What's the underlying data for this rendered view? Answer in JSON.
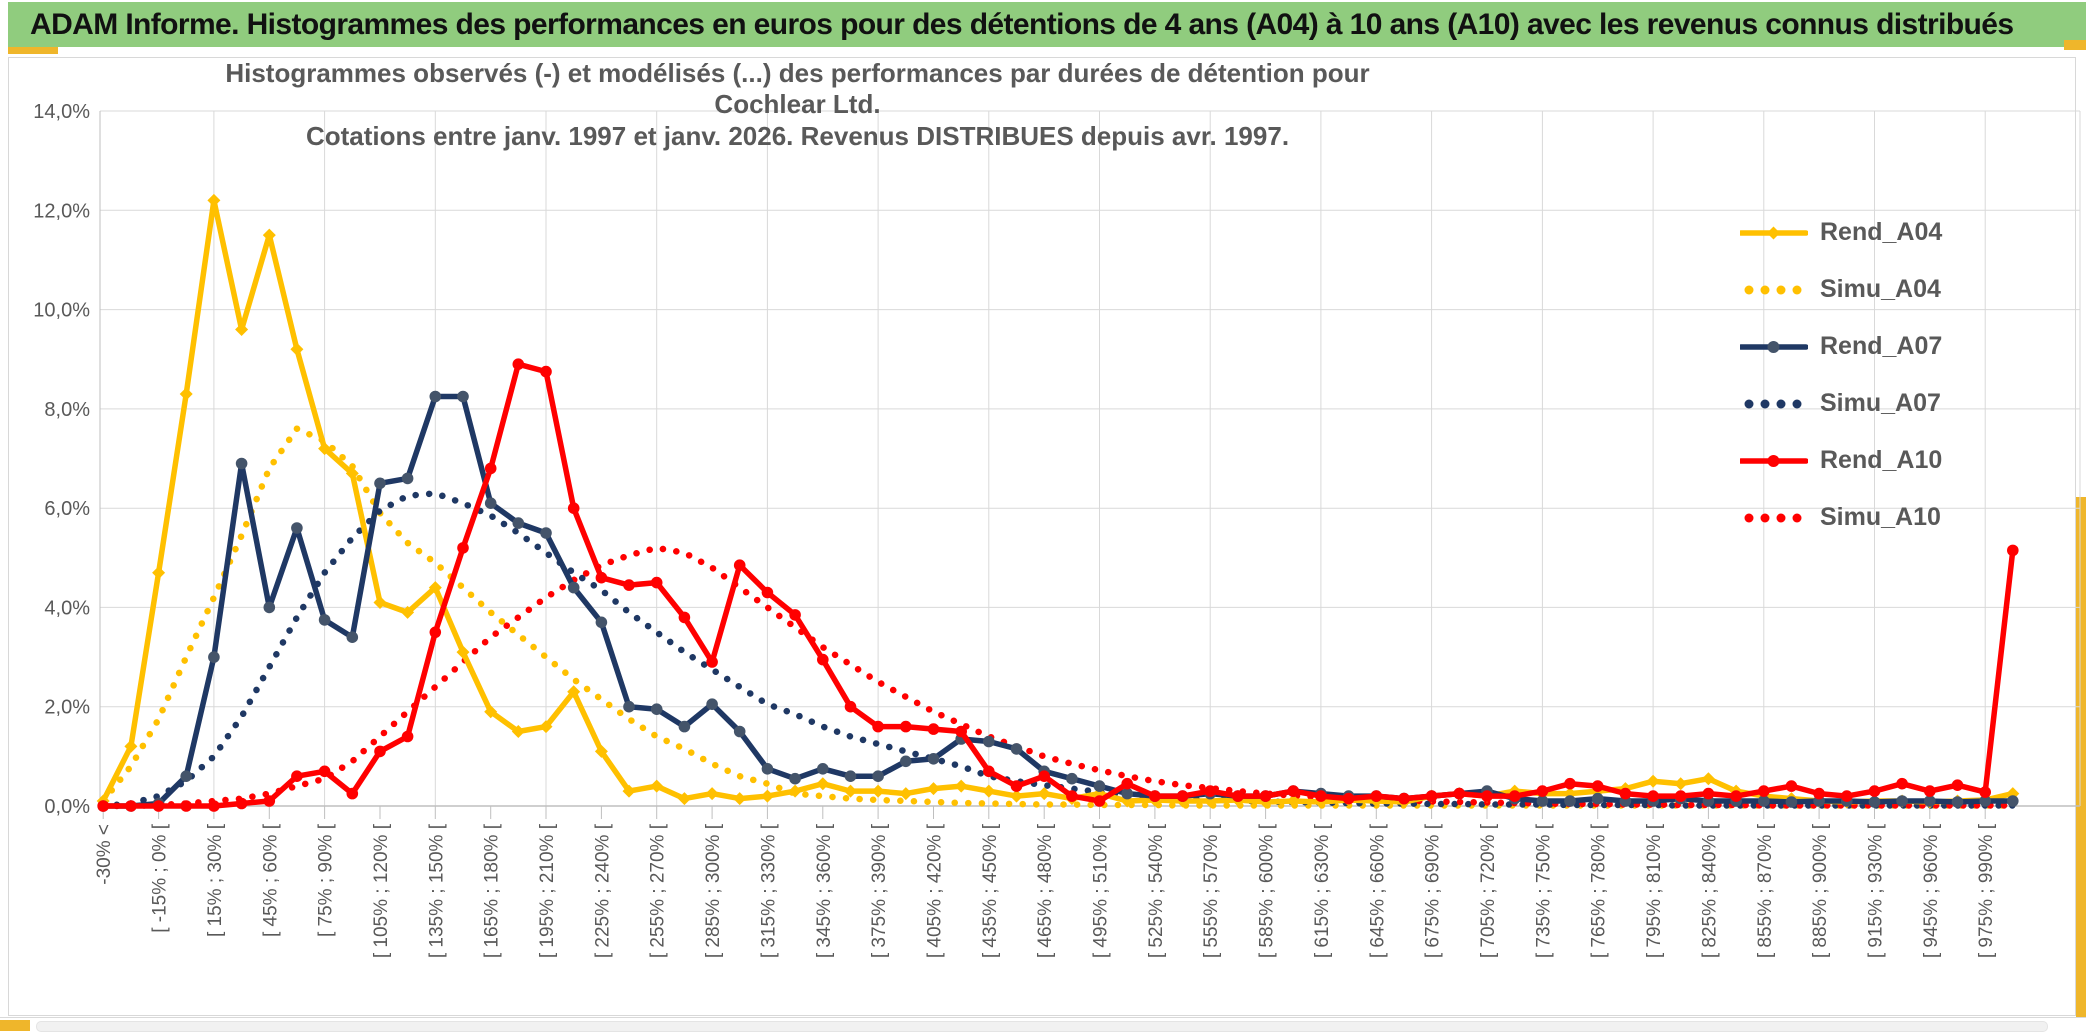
{
  "header": {
    "title": "ADAM Informe. Histogrammes des performances en euros pour des détentions de 4 ans (A04) à 10 ans (A10) avec les revenus connus distribués",
    "bar_color": "#90CC7E",
    "accent_color": "#EFB62B"
  },
  "chart_data": {
    "type": "line",
    "title_line1": "Histogrammes observés (-) et modélisés (...) des performances par durées de détention pour Cochlear Ltd.",
    "title_line2": "Cotations entre janv. 1997 et janv. 2026. Revenus DISTRIBUES depuis avr. 1997.",
    "ylim": [
      0,
      14
    ],
    "grid": true,
    "legend_position": "right",
    "y_tick_labels": [
      "0,0%",
      "2,0%",
      "4,0%",
      "6,0%",
      "8,0%",
      "10,0%",
      "12,0%",
      "14,0%"
    ],
    "x_bins_per_tick_label": 2,
    "x_tick_labels": [
      "-30% <",
      "[ -15% ; 0% [",
      "[ 15% ; 30% [",
      "[ 45% ; 60% [",
      "[ 75% ; 90% [",
      "[ 105% ; 120% [",
      "[ 135% ; 150% [",
      "[ 165% ; 180% [",
      "[ 195% ; 210% [",
      "[ 225% ; 240% [",
      "[ 255% ; 270% [",
      "[ 285% ; 300% [",
      "[ 315% ; 330% [",
      "[ 345% ; 360% [",
      "[ 375% ; 390% [",
      "[ 405% ; 420% [",
      "[ 435% ; 450% [",
      "[ 465% ; 480% [",
      "[ 495% ; 510% [",
      "[ 525% ; 540% [",
      "[ 555% ; 570% [",
      "[ 585% ; 600% [",
      "[ 615% ; 630% [",
      "[ 645% ; 660% [",
      "[ 675% ; 690% [",
      "[ 705% ; 720% [",
      "[ 735% ; 750% [",
      "[ 765% ; 780% [",
      "[ 795% ; 810% [",
      "[ 825% ; 840% [",
      "[ 855% ; 870% [",
      "[ 885% ; 900% [",
      "[ 915% ; 930% [",
      "[ 945% ; 960% [",
      "[ 975% ; 990% ["
    ],
    "series": [
      {
        "name": "Rend_A04",
        "style": "solid",
        "color": "#FFC000",
        "marker": "diamond",
        "marker_color": "#FFC000",
        "values": [
          0.1,
          1.2,
          4.7,
          8.3,
          12.2,
          9.6,
          11.5,
          9.2,
          7.2,
          6.7,
          4.1,
          3.9,
          4.4,
          3.1,
          1.9,
          1.5,
          1.6,
          2.3,
          1.1,
          0.3,
          0.4,
          0.15,
          0.25,
          0.15,
          0.2,
          0.3,
          0.45,
          0.3,
          0.3,
          0.25,
          0.35,
          0.4,
          0.3,
          0.2,
          0.25,
          0.15,
          0.25,
          0.1,
          0.12,
          0.1,
          0.1,
          0.12,
          0.08,
          0.1,
          0.08,
          0.12,
          0.1,
          0.08,
          0.2,
          0.25,
          0.2,
          0.3,
          0.25,
          0.25,
          0.3,
          0.35,
          0.5,
          0.45,
          0.55,
          0.3,
          0.2,
          0.15,
          0.1,
          0.08,
          0.1,
          0.1,
          0.08,
          0.1,
          0.12,
          0.25
        ]
      },
      {
        "name": "Simu_A04",
        "style": "dotted",
        "color": "#FFC000",
        "values": [
          0.1,
          0.8,
          1.75,
          3.0,
          4.2,
          5.45,
          6.8,
          7.6,
          7.35,
          6.85,
          5.9,
          5.3,
          4.9,
          4.4,
          3.9,
          3.45,
          3.0,
          2.55,
          2.15,
          1.75,
          1.4,
          1.15,
          0.85,
          0.6,
          0.45,
          0.25,
          0.2,
          0.15,
          0.12,
          0.1,
          0.08,
          0.06,
          0.05,
          0.04,
          0.03,
          0.03,
          0.02,
          0.02,
          0.02,
          0.01,
          0.01,
          0.01,
          0.01,
          0.01,
          0.01,
          0.01,
          0.01,
          0.01,
          0.01,
          0.01,
          0.01,
          0.01,
          0.01,
          0.01,
          0.01,
          0.01,
          0.01,
          0.01,
          0.01,
          0.01,
          0.01,
          0.01,
          0.01,
          0.01,
          0.01,
          0.01,
          0.01,
          0.01,
          0.01,
          0.01
        ]
      },
      {
        "name": "Rend_A07",
        "style": "solid",
        "color": "#1F3864",
        "marker": "circle",
        "marker_color": "#44546A",
        "values": [
          0,
          0,
          0.05,
          0.6,
          3.0,
          6.9,
          4.0,
          5.6,
          3.75,
          3.4,
          6.5,
          6.6,
          8.25,
          8.25,
          6.1,
          5.7,
          5.5,
          4.4,
          3.7,
          2.0,
          1.95,
          1.6,
          2.05,
          1.5,
          0.75,
          0.55,
          0.75,
          0.6,
          0.6,
          0.9,
          0.95,
          1.35,
          1.3,
          1.15,
          0.7,
          0.55,
          0.4,
          0.25,
          0.2,
          0.2,
          0.25,
          0.2,
          0.2,
          0.3,
          0.25,
          0.2,
          0.2,
          0.15,
          0.2,
          0.25,
          0.3,
          0.15,
          0.1,
          0.1,
          0.15,
          0.1,
          0.1,
          0.15,
          0.1,
          0.1,
          0.1,
          0.08,
          0.1,
          0.1,
          0.08,
          0.1,
          0.1,
          0.08,
          0.1,
          0.1
        ]
      },
      {
        "name": "Simu_A07",
        "style": "dotted",
        "color": "#1F3864",
        "values": [
          0,
          0.05,
          0.2,
          0.5,
          1.0,
          1.8,
          2.8,
          3.8,
          4.7,
          5.4,
          5.95,
          6.25,
          6.3,
          6.1,
          5.85,
          5.5,
          5.1,
          4.7,
          4.35,
          3.9,
          3.5,
          3.1,
          2.75,
          2.4,
          2.05,
          1.85,
          1.6,
          1.4,
          1.25,
          1.1,
          0.95,
          0.8,
          0.6,
          0.5,
          0.42,
          0.35,
          0.28,
          0.23,
          0.19,
          0.15,
          0.13,
          0.11,
          0.09,
          0.08,
          0.07,
          0.06,
          0.05,
          0.05,
          0.04,
          0.04,
          0.03,
          0.03,
          0.03,
          0.02,
          0.02,
          0.02,
          0.02,
          0.01,
          0.01,
          0.01,
          0.01,
          0.01,
          0.01,
          0.01,
          0.01,
          0.01,
          0.01,
          0.01,
          0.01,
          0.01
        ]
      },
      {
        "name": "Rend_A10",
        "style": "solid",
        "color": "#FF0000",
        "marker": "circle",
        "marker_color": "#FF0000",
        "values": [
          0,
          0,
          0,
          0,
          0,
          0.05,
          0.1,
          0.6,
          0.7,
          0.25,
          1.1,
          1.4,
          3.5,
          5.2,
          6.8,
          8.9,
          8.75,
          6.0,
          4.6,
          4.45,
          4.5,
          3.8,
          2.9,
          4.85,
          4.3,
          3.85,
          2.95,
          2.0,
          1.6,
          1.6,
          1.55,
          1.5,
          0.7,
          0.4,
          0.6,
          0.2,
          0.1,
          0.45,
          0.2,
          0.2,
          0.3,
          0.2,
          0.2,
          0.3,
          0.2,
          0.15,
          0.2,
          0.15,
          0.2,
          0.25,
          0.2,
          0.2,
          0.3,
          0.45,
          0.4,
          0.25,
          0.2,
          0.2,
          0.25,
          0.2,
          0.3,
          0.4,
          0.25,
          0.2,
          0.3,
          0.45,
          0.3,
          0.42,
          0.28,
          5.15
        ]
      },
      {
        "name": "Simu_A10",
        "style": "dotted",
        "color": "#FF0000",
        "values": [
          0,
          0,
          0.02,
          0.05,
          0.1,
          0.15,
          0.25,
          0.4,
          0.55,
          0.9,
          1.4,
          1.9,
          2.4,
          2.9,
          3.4,
          3.8,
          4.2,
          4.55,
          4.85,
          5.05,
          5.2,
          5.1,
          4.8,
          4.4,
          4.0,
          3.6,
          3.2,
          2.85,
          2.5,
          2.2,
          1.9,
          1.65,
          1.4,
          1.2,
          1.0,
          0.85,
          0.72,
          0.6,
          0.5,
          0.42,
          0.36,
          0.3,
          0.25,
          0.21,
          0.18,
          0.15,
          0.13,
          0.11,
          0.09,
          0.08,
          0.07,
          0.06,
          0.05,
          0.04,
          0.04,
          0.03,
          0.03,
          0.02,
          0.02,
          0.02,
          0.01,
          0.01,
          0.01,
          0.01,
          0.01,
          0.01,
          0.01,
          0.01,
          0.01,
          0.01
        ]
      }
    ]
  }
}
